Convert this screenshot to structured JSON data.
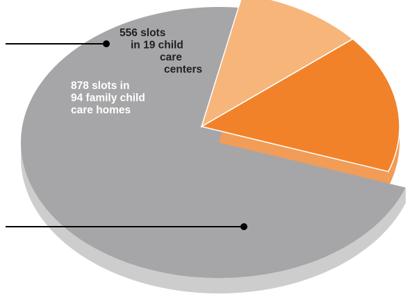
{
  "chart_data": {
    "type": "pie",
    "style": "3d-exploded",
    "title": "",
    "slices": [
      {
        "label_lines": [
          "556 slots",
          "in 19 child",
          "care",
          "centers"
        ],
        "value": 556,
        "exploded": true,
        "top_color": "#f7b57a",
        "side_color": "#f19c57",
        "text_color": "#231f20"
      },
      {
        "label_lines": [
          "878 slots in",
          "94 family child",
          "care homes"
        ],
        "value": 878,
        "exploded": true,
        "top_color": "#f2822a",
        "side_color": "#f19c57",
        "text_color": "#ffffff"
      },
      {
        "label_lines": [],
        "value": 3866,
        "exploded": false,
        "top_color": "#a6a6a8",
        "side_color": "#cdcdce",
        "text_color": "#231f20"
      }
    ],
    "leader_lines": [
      {
        "slice_index": 1
      },
      {
        "slice_index": 2
      }
    ],
    "colors": {
      "leader": "#000000",
      "background": "#ffffff"
    }
  }
}
